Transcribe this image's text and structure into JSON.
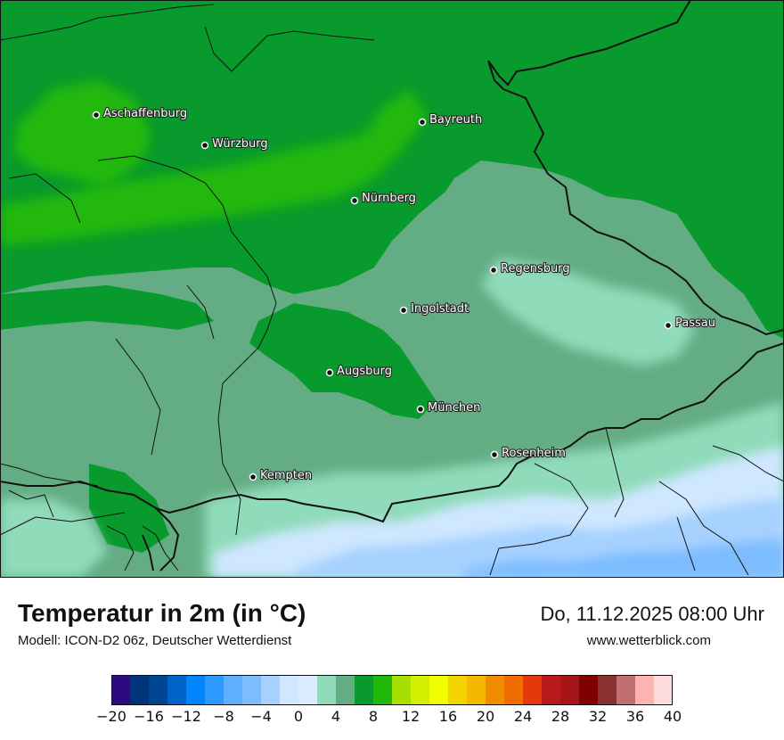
{
  "map": {
    "cities": [
      {
        "name": "Aschaffenburg"
      },
      {
        "name": "Würzburg"
      },
      {
        "name": "Bayreuth"
      },
      {
        "name": "Nürnberg"
      },
      {
        "name": "Regensburg"
      },
      {
        "name": "Ingolstadt"
      },
      {
        "name": "Passau"
      },
      {
        "name": "Augsburg"
      },
      {
        "name": "München"
      },
      {
        "name": "Rosenheim"
      },
      {
        "name": "Kempten"
      }
    ],
    "colors": {
      "t_0_2": "#cfe7ff",
      "t_2_4": "#8fdbba",
      "t_4_6": "#64ad84",
      "t_6_8": "#089a2c",
      "t_8_10": "#22b80a",
      "t_n2_0": "#a6d1ff",
      "t_n4_n2": "#7cbcff",
      "border": "#111111"
    }
  },
  "footer": {
    "title": "Temperatur in 2m (in °C)",
    "subtitle": "Modell: ICON-D2 06z, Deutscher Wetterdienst",
    "datetime": "Do, 11.12.2025 08:00 Uhr",
    "website": "www.wetterblick.com"
  },
  "legend": {
    "min": -20,
    "max": 40,
    "step": 2,
    "ticks": [
      "−20",
      "−16",
      "−12",
      "−8",
      "−4",
      "0",
      "4",
      "8",
      "12",
      "16",
      "20",
      "24",
      "28",
      "32",
      "36",
      "40"
    ],
    "colors": [
      "#2e0a80",
      "#00347a",
      "#004591",
      "#0062c6",
      "#0084ff",
      "#2d9aff",
      "#5fb0ff",
      "#7cbcff",
      "#a6d1ff",
      "#cfe7ff",
      "#dcecff",
      "#8fdbba",
      "#64ad84",
      "#089a2c",
      "#22b80a",
      "#a6e000",
      "#d2ef00",
      "#f0ff00",
      "#f4d400",
      "#f4b800",
      "#f18c00",
      "#f06e00",
      "#e5380b",
      "#b9181c",
      "#a5151a",
      "#7e0000",
      "#8a3232",
      "#c07070",
      "#ffb2b2",
      "#ffdcdc"
    ]
  }
}
